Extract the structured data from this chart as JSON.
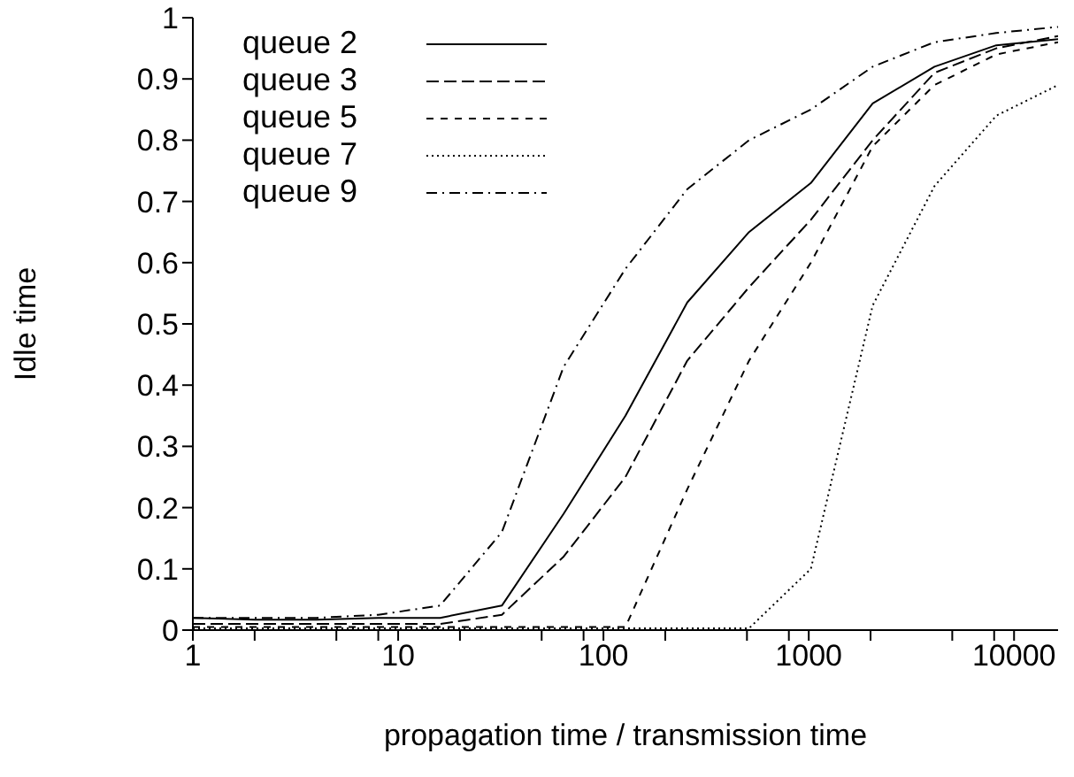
{
  "chart_data": {
    "type": "line",
    "xlabel": "propagation time / transmission time",
    "ylabel": "Idle time",
    "log": "x",
    "grid": false,
    "legend": "top left",
    "marker": "none",
    "x": [
      1,
      2,
      4,
      8,
      16,
      32,
      64,
      128,
      256,
      512,
      1024,
      2048,
      4096,
      8192,
      16384
    ],
    "xlim": [
      1,
      16384
    ],
    "xticks": [
      1,
      {
        "value": 2,
        "label": null
      },
      {
        "value": 5,
        "label": null
      },
      {
        "value": 8,
        "label": null
      },
      10,
      {
        "value": 20,
        "label": null
      },
      {
        "value": 50,
        "label": null
      },
      {
        "value": 80,
        "label": null
      },
      100,
      {
        "value": 200,
        "label": null
      },
      {
        "value": 500,
        "label": null
      },
      {
        "value": 800,
        "label": null
      },
      1000,
      {
        "value": 2000,
        "label": null
      },
      {
        "value": 5000,
        "label": null
      },
      {
        "value": 8000,
        "label": null
      },
      10000
    ],
    "ylim": [
      0,
      1
    ],
    "yticks": [
      0,
      0.1,
      0.2,
      0.3,
      0.4,
      0.5,
      0.6,
      0.7,
      0.8,
      0.9,
      1
    ],
    "series": [
      {
        "name": "queue 2",
        "color": "#000000",
        "line_style": "solid",
        "values": [
          0.02,
          0.017,
          0.017,
          0.02,
          0.02,
          0.04,
          0.19,
          0.35,
          0.535,
          0.65,
          0.73,
          0.86,
          0.92,
          0.955,
          0.965
        ]
      },
      {
        "name": "queue 3",
        "color": "#000000",
        "line_style": "dashed",
        "values": [
          0.01,
          0.01,
          0.01,
          0.01,
          0.01,
          0.025,
          0.12,
          0.25,
          0.44,
          0.56,
          0.67,
          0.8,
          0.91,
          0.95,
          0.97
        ]
      },
      {
        "name": "queue 5",
        "color": "#000000",
        "line_style": "dashed",
        "values": [
          0.005,
          0.005,
          0.005,
          0.005,
          0.005,
          0.005,
          0.005,
          0.005,
          0.23,
          0.44,
          0.6,
          0.79,
          0.89,
          0.94,
          0.96
        ]
      },
      {
        "name": "queue 7",
        "color": "#000000",
        "line_style": "dotted",
        "values": [
          0.003,
          0.003,
          0.003,
          0.003,
          0.003,
          0.003,
          0.003,
          0.003,
          0.003,
          0.003,
          0.1,
          0.53,
          0.725,
          0.84,
          0.89
        ]
      },
      {
        "name": "queue 9",
        "color": "#000000",
        "line_style": "dashdot",
        "values": [
          0.02,
          0.02,
          0.02,
          0.025,
          0.04,
          0.16,
          0.43,
          0.59,
          0.72,
          0.8,
          0.85,
          0.92,
          0.96,
          0.975,
          0.985
        ]
      }
    ]
  }
}
